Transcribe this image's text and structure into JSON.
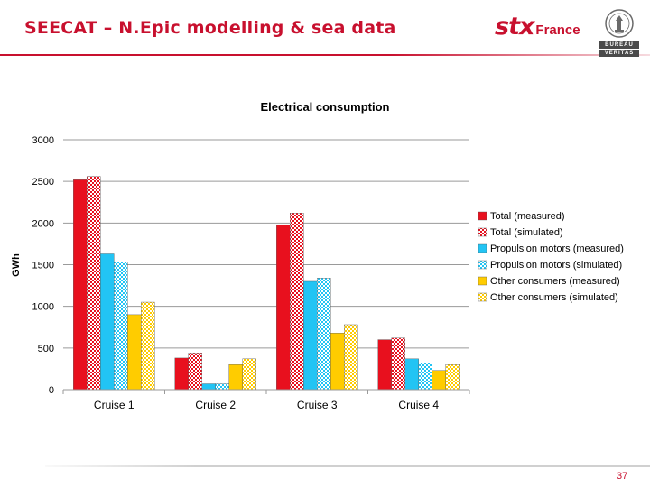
{
  "slide": {
    "title": "SEECAT – N.Epic modelling & sea data",
    "page_number": "37"
  },
  "logos": {
    "stx_brand": "stx",
    "stx_sub": "France",
    "bv_line1": "BUREAU",
    "bv_line2": "VERITAS"
  },
  "colors": {
    "accent": "#c8102e",
    "total": "#e8101e",
    "propulsion": "#22c4f4",
    "other": "#ffcc00"
  },
  "chart_data": {
    "type": "bar",
    "title": "Electrical consumption",
    "xlabel": "",
    "ylabel": "GWh",
    "categories": [
      "Cruise 1",
      "Cruise 2",
      "Cruise 3",
      "Cruise 4"
    ],
    "ylim": [
      0,
      3000
    ],
    "yticks": [
      0,
      500,
      1000,
      1500,
      2000,
      2500,
      3000
    ],
    "grid": true,
    "legend_position": "right",
    "series": [
      {
        "name": "Total (measured)",
        "values": [
          2520,
          380,
          1980,
          600
        ],
        "color": "#e8101e",
        "pattern": "solid"
      },
      {
        "name": "Total (simulated)",
        "values": [
          2560,
          440,
          2120,
          620
        ],
        "color": "#e8101e",
        "pattern": "checker"
      },
      {
        "name": "Propulsion motors (measured)",
        "values": [
          1630,
          70,
          1300,
          370
        ],
        "color": "#22c4f4",
        "pattern": "solid"
      },
      {
        "name": "Propulsion motors (simulated)",
        "values": [
          1530,
          70,
          1340,
          320
        ],
        "color": "#22c4f4",
        "pattern": "checker"
      },
      {
        "name": "Other consumers (measured)",
        "values": [
          900,
          300,
          680,
          230
        ],
        "color": "#ffcc00",
        "pattern": "solid"
      },
      {
        "name": "Other consumers (simulated)",
        "values": [
          1050,
          370,
          780,
          300
        ],
        "color": "#ffcc00",
        "pattern": "checker"
      }
    ]
  }
}
